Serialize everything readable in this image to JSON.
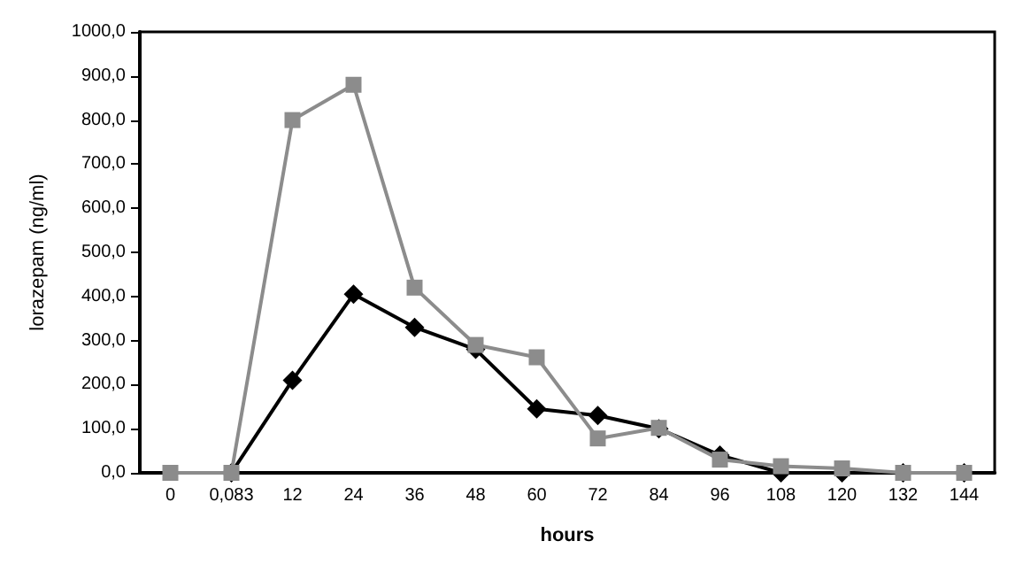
{
  "chart_data": {
    "type": "line",
    "xlabel": "hours",
    "ylabel": "lorazepam (ng/ml)",
    "categories": [
      "0",
      "0,083",
      "12",
      "24",
      "36",
      "48",
      "60",
      "72",
      "84",
      "96",
      "108",
      "120",
      "132",
      "144"
    ],
    "series": [
      {
        "color": "#8c8c8c",
        "marker": "square",
        "values": [
          0,
          0,
          800,
          880,
          420,
          290,
          262,
          78,
          102,
          30,
          15,
          10,
          0,
          0
        ]
      },
      {
        "color": "#000000",
        "marker": "diamond",
        "values": [
          null,
          0,
          210,
          405,
          330,
          280,
          145,
          130,
          100,
          40,
          0,
          0,
          0,
          0
        ]
      }
    ],
    "ylim": [
      0,
      1000
    ],
    "yticks": [
      {
        "value": 0,
        "label": "0,0"
      },
      {
        "value": 100,
        "label": "100,0"
      },
      {
        "value": 200,
        "label": "200,0"
      },
      {
        "value": 300,
        "label": "300,0"
      },
      {
        "value": 400,
        "label": "400,0"
      },
      {
        "value": 500,
        "label": "500,0"
      },
      {
        "value": 600,
        "label": "600,0"
      },
      {
        "value": 700,
        "label": "700,0"
      },
      {
        "value": 800,
        "label": "800,0"
      },
      {
        "value": 900,
        "label": "900,0"
      },
      {
        "value": 1000,
        "label": "1000,0"
      }
    ],
    "grid": false,
    "line_style": "solid"
  }
}
